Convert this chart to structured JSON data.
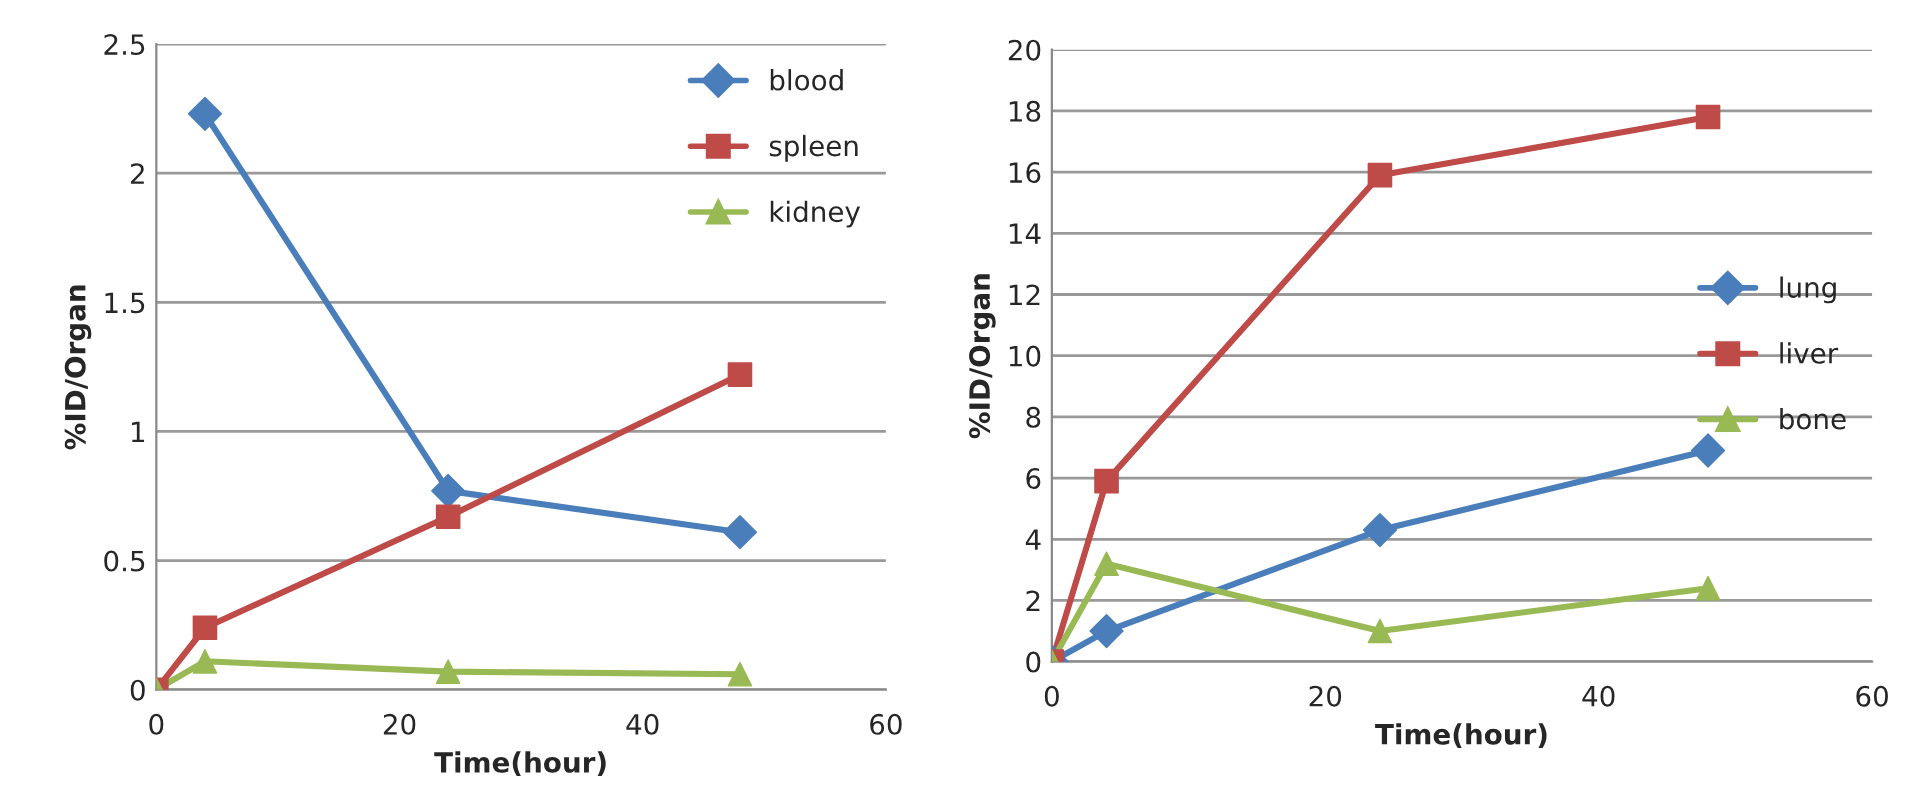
{
  "chart_data": [
    {
      "type": "line",
      "xlabel": "Time(hour)",
      "ylabel": "%ID/Organ",
      "xlim": [
        0,
        60
      ],
      "xticks": [
        0,
        20,
        40,
        60
      ],
      "ylim": [
        0,
        2.5
      ],
      "yticks": [
        0,
        0.5,
        1,
        1.5,
        2,
        2.5
      ],
      "grid": "y",
      "legend": "top right",
      "series": [
        {
          "name": "blood",
          "color": "#4a7ebb",
          "marker": "diamond",
          "x": [
            4,
            24,
            48
          ],
          "values": [
            2.23,
            0.77,
            0.61
          ]
        },
        {
          "name": "spleen",
          "color": "#be4b48",
          "marker": "square",
          "x": [
            0,
            4,
            24,
            48
          ],
          "values": [
            0,
            0.24,
            0.67,
            1.22
          ]
        },
        {
          "name": "kidney",
          "color": "#98b954",
          "marker": "triangle",
          "x": [
            0,
            4,
            24,
            48
          ],
          "values": [
            0,
            0.11,
            0.07,
            0.06
          ]
        }
      ]
    },
    {
      "type": "line",
      "xlabel": "Time(hour)",
      "ylabel": "%ID/Organ",
      "xlim": [
        0,
        60
      ],
      "xticks": [
        0,
        20,
        40,
        60
      ],
      "ylim": [
        0,
        20
      ],
      "yticks": [
        0,
        2,
        4,
        6,
        8,
        10,
        12,
        14,
        16,
        18,
        20
      ],
      "grid": "y",
      "legend": "right",
      "series": [
        {
          "name": "lung",
          "color": "#4a7ebb",
          "marker": "diamond",
          "x": [
            0,
            4,
            24,
            48
          ],
          "values": [
            0,
            1.0,
            4.3,
            6.9
          ]
        },
        {
          "name": "liver",
          "color": "#be4b48",
          "marker": "square",
          "x": [
            0,
            4,
            24,
            48
          ],
          "values": [
            0,
            5.9,
            15.9,
            17.8
          ]
        },
        {
          "name": "bone",
          "color": "#98b954",
          "marker": "triangle",
          "x": [
            0,
            4,
            24,
            48
          ],
          "values": [
            0,
            3.2,
            1.0,
            2.4
          ]
        }
      ]
    }
  ]
}
